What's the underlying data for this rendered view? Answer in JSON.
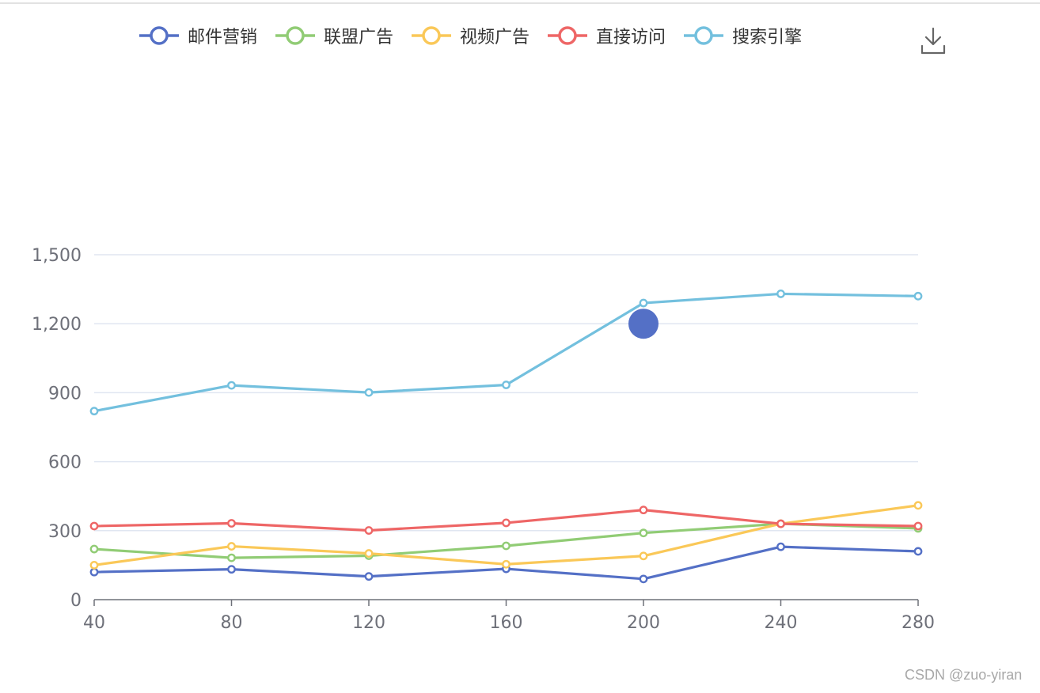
{
  "chart_data": {
    "type": "line",
    "x": [
      40,
      80,
      120,
      160,
      200,
      240,
      280
    ],
    "ylim": [
      0,
      1500
    ],
    "yticks": [
      0,
      300,
      600,
      900,
      1200,
      1500
    ],
    "ytick_labels": [
      "0",
      "300",
      "600",
      "900",
      "1,200",
      "1,500"
    ],
    "xtick_labels": [
      "40",
      "80",
      "120",
      "160",
      "200",
      "240",
      "280"
    ],
    "grid": true,
    "legend_position": "top",
    "series": [
      {
        "name": "邮件营销",
        "color": "#5470c6",
        "values": [
          120,
          132,
          101,
          134,
          90,
          230,
          210
        ]
      },
      {
        "name": "联盟广告",
        "color": "#91cc75",
        "values": [
          220,
          182,
          191,
          234,
          290,
          330,
          310
        ]
      },
      {
        "name": "视频广告",
        "color": "#fac858",
        "values": [
          150,
          232,
          201,
          154,
          190,
          330,
          410
        ]
      },
      {
        "name": "直接访问",
        "color": "#ee6666",
        "values": [
          320,
          332,
          301,
          334,
          390,
          330,
          320
        ]
      },
      {
        "name": "搜索引擎",
        "color": "#73c0de",
        "values": [
          820,
          932,
          901,
          934,
          1290,
          1330,
          1320
        ]
      }
    ],
    "marker": {
      "x": 200,
      "y": 1200,
      "color": "#5470c6"
    }
  },
  "toolbox": {
    "download_icon": "download-icon"
  },
  "watermark": "CSDN @zuo-yiran"
}
